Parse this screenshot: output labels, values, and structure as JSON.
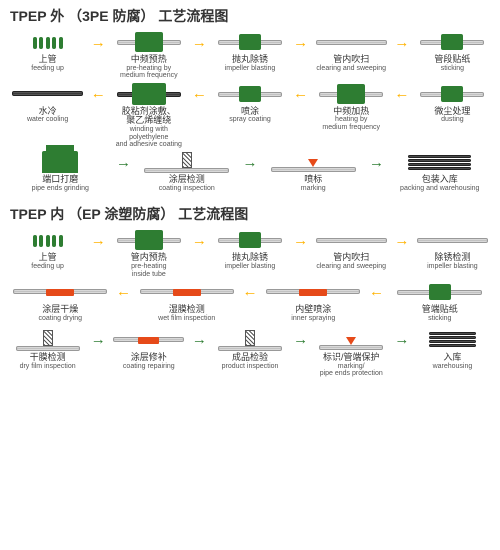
{
  "sectionA": {
    "title": "TPEP 外 （3PE 防腐） 工艺流程图",
    "arrows": {
      "right": {
        "glyph": "→",
        "color": "#ffb300"
      },
      "left": {
        "glyph": "←",
        "color": "#ffb300"
      },
      "right_green": {
        "glyph": "→",
        "color": "#2e7d32"
      }
    },
    "rows": [
      {
        "dir": "right",
        "arrow": "right",
        "steps": [
          {
            "g": "roller",
            "cn": "上管",
            "en": "feeding up"
          },
          {
            "g": "box",
            "cn": "中频预热",
            "en": "pre-heating by\nmedium frequency"
          },
          {
            "g": "box-sm",
            "cn": "抛丸除锈",
            "en": "impeller blasting"
          },
          {
            "g": "pipe",
            "cn": "管内吹扫",
            "en": "clearing and sweeping"
          },
          {
            "g": "box-sm",
            "cn": "管段贴纸",
            "en": "sticking"
          }
        ]
      },
      {
        "dir": "left",
        "arrow": "left",
        "steps": [
          {
            "g": "pipe-dark",
            "cn": "水冷",
            "en": "water cooling"
          },
          {
            "g": "box-lg",
            "cn": "胶粘剂涂敷、\n聚乙烯缠绕",
            "en": "winding with polyethylene\nand adhesive coating"
          },
          {
            "g": "box-sm",
            "cn": "喷涂",
            "en": "spray coating"
          },
          {
            "g": "box",
            "cn": "中频加热",
            "en": "heating by\nmedium frequency"
          },
          {
            "g": "box-sm",
            "cn": "微尘处理",
            "en": "dusting"
          }
        ]
      },
      {
        "dir": "right",
        "arrow": "right_green",
        "steps": [
          {
            "g": "grinder",
            "cn": "端口打磨",
            "en": "pipe ends grinding"
          },
          {
            "g": "spring",
            "cn": "涂层检测",
            "en": "coating inspection"
          },
          {
            "g": "marker",
            "cn": "喷标",
            "en": "marking"
          },
          {
            "g": "stack",
            "cn": "包装入库",
            "en": "packing and warehousing"
          }
        ]
      }
    ]
  },
  "sectionB": {
    "title": "TPEP 内 （EP 涂塑防腐） 工艺流程图",
    "arrows": {
      "right": {
        "glyph": "→",
        "color": "#ffb300"
      },
      "left": {
        "glyph": "←",
        "color": "#ffb300"
      },
      "right_green": {
        "glyph": "→",
        "color": "#2e7d32"
      }
    },
    "rows": [
      {
        "dir": "right",
        "arrow": "right",
        "steps": [
          {
            "g": "roller",
            "cn": "上管",
            "en": "feeding up"
          },
          {
            "g": "box",
            "cn": "管内预热",
            "en": "pre-heating\ninside tube"
          },
          {
            "g": "box-sm",
            "cn": "抛丸除锈",
            "en": "impeller blasting"
          },
          {
            "g": "pipe",
            "cn": "管内吹扫",
            "en": "clearing and sweeping"
          },
          {
            "g": "pipe",
            "cn": "除锈检测",
            "en": "impeller blasting"
          }
        ]
      },
      {
        "dir": "left",
        "arrow": "left",
        "steps": [
          {
            "g": "pipe-red",
            "cn": "涂层干燥",
            "en": "coating drying"
          },
          {
            "g": "pipe-red",
            "cn": "湿膜检测",
            "en": "wet film inspection"
          },
          {
            "g": "pipe-red",
            "cn": "内壁喷涂",
            "en": "inner spraying"
          },
          {
            "g": "box-sm",
            "cn": "管端贴纸",
            "en": "sticking"
          }
        ]
      },
      {
        "dir": "right",
        "arrow": "right_green",
        "steps": [
          {
            "g": "spring",
            "cn": "干膜检测",
            "en": "dry film inspection"
          },
          {
            "g": "pipe-red",
            "cn": "涂层修补",
            "en": "coating repairing"
          },
          {
            "g": "spring",
            "cn": "成品检验",
            "en": "product inspection"
          },
          {
            "g": "marker",
            "cn": "标识/管端保护",
            "en": "marking/\npipe ends protection"
          },
          {
            "g": "stack",
            "cn": "入库",
            "en": "warehousing"
          }
        ]
      }
    ]
  }
}
